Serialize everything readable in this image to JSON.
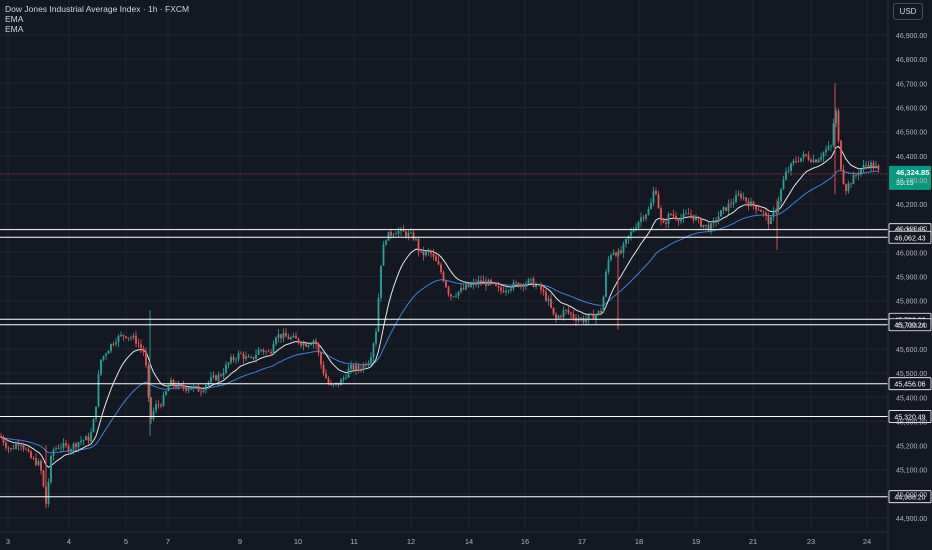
{
  "legend": {
    "title": "Dow Jones Industrial Average Index · 1h · FXCM",
    "ema1": "EMA",
    "ema2": "EMA"
  },
  "currency_button": "USD",
  "chart_data": {
    "type": "candlestick",
    "y_ticks": [
      44900,
      45000,
      45100,
      45200,
      45300,
      45400,
      45500,
      45600,
      45700,
      45800,
      45900,
      46000,
      46100,
      46200,
      46300,
      46400,
      46500,
      46600,
      46700,
      46800,
      46900
    ],
    "x_ticks": [
      "3",
      "4",
      "5",
      "7",
      "9",
      "10",
      "11",
      "12",
      "14",
      "16",
      "17",
      "18",
      "19",
      "21",
      "23",
      "24"
    ],
    "current_price": {
      "value": "46,324.85",
      "countdown": "39:15"
    },
    "levels": [
      {
        "value": 46093.85,
        "label": "46,093.85"
      },
      {
        "value": 46062.43,
        "label": "46,062.43"
      },
      {
        "value": 45722.93,
        "label": "45,722.93"
      },
      {
        "value": 45700.24,
        "label": "45,700.24"
      },
      {
        "value": 45456.06,
        "label": "45,456.06"
      },
      {
        "value": 45320.49,
        "label": "45,320.49"
      },
      {
        "value": 44988.2,
        "label": "44,988.20"
      }
    ],
    "price_path": [
      [
        0,
        45240
      ],
      [
        10,
        45180
      ],
      [
        20,
        45220
      ],
      [
        30,
        45150
      ],
      [
        40,
        45120
      ],
      [
        46,
        44960
      ],
      [
        52,
        45180
      ],
      [
        60,
        45200
      ],
      [
        70,
        45190
      ],
      [
        80,
        45220
      ],
      [
        90,
        45230
      ],
      [
        95,
        45330
      ],
      [
        100,
        45550
      ],
      [
        108,
        45600
      ],
      [
        115,
        45640
      ],
      [
        125,
        45660
      ],
      [
        135,
        45640
      ],
      [
        145,
        45580
      ],
      [
        150,
        45300
      ],
      [
        155,
        45360
      ],
      [
        162,
        45380
      ],
      [
        170,
        45460
      ],
      [
        180,
        45440
      ],
      [
        190,
        45440
      ],
      [
        200,
        45430
      ],
      [
        210,
        45470
      ],
      [
        220,
        45490
      ],
      [
        230,
        45550
      ],
      [
        240,
        45580
      ],
      [
        250,
        45550
      ],
      [
        260,
        45600
      ],
      [
        270,
        45580
      ],
      [
        275,
        45660
      ],
      [
        285,
        45650
      ],
      [
        295,
        45640
      ],
      [
        305,
        45620
      ],
      [
        315,
        45640
      ],
      [
        322,
        45520
      ],
      [
        330,
        45440
      ],
      [
        340,
        45460
      ],
      [
        350,
        45520
      ],
      [
        360,
        45520
      ],
      [
        370,
        45560
      ],
      [
        377,
        45700
      ],
      [
        380,
        45930
      ],
      [
        385,
        46060
      ],
      [
        395,
        46090
      ],
      [
        405,
        46080
      ],
      [
        415,
        46060
      ],
      [
        420,
        45990
      ],
      [
        430,
        46000
      ],
      [
        440,
        45930
      ],
      [
        450,
        45820
      ],
      [
        460,
        45840
      ],
      [
        470,
        45860
      ],
      [
        480,
        45880
      ],
      [
        490,
        45870
      ],
      [
        500,
        45840
      ],
      [
        510,
        45860
      ],
      [
        520,
        45870
      ],
      [
        530,
        45880
      ],
      [
        540,
        45850
      ],
      [
        548,
        45800
      ],
      [
        555,
        45720
      ],
      [
        565,
        45760
      ],
      [
        575,
        45730
      ],
      [
        585,
        45720
      ],
      [
        595,
        45740
      ],
      [
        602,
        45760
      ],
      [
        607,
        45950
      ],
      [
        612,
        46010
      ],
      [
        620,
        45990
      ],
      [
        628,
        46060
      ],
      [
        640,
        46140
      ],
      [
        650,
        46180
      ],
      [
        655,
        46280
      ],
      [
        662,
        46100
      ],
      [
        670,
        46160
      ],
      [
        680,
        46140
      ],
      [
        690,
        46160
      ],
      [
        700,
        46120
      ],
      [
        710,
        46100
      ],
      [
        720,
        46160
      ],
      [
        730,
        46200
      ],
      [
        740,
        46240
      ],
      [
        750,
        46200
      ],
      [
        760,
        46180
      ],
      [
        770,
        46120
      ],
      [
        778,
        46210
      ],
      [
        785,
        46320
      ],
      [
        795,
        46380
      ],
      [
        805,
        46400
      ],
      [
        815,
        46380
      ],
      [
        825,
        46420
      ],
      [
        832,
        46440
      ],
      [
        835,
        46630
      ],
      [
        840,
        46380
      ],
      [
        845,
        46260
      ],
      [
        852,
        46300
      ],
      [
        860,
        46340
      ],
      [
        868,
        46370
      ],
      [
        876,
        46350
      ],
      [
        880,
        46324
      ]
    ]
  }
}
